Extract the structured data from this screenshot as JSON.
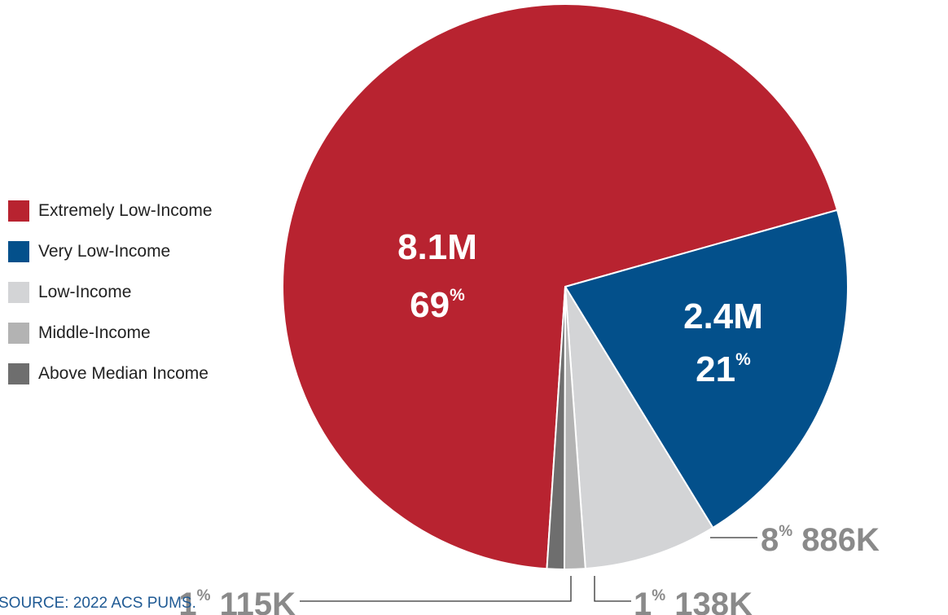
{
  "source": "SOURCE: 2022 ACS PUMS.",
  "colors": {
    "source_text": "#1f5a94",
    "slice_stroke": "#ffffff",
    "inside_label": "#ffffff",
    "outside_label": "#8a8a8a",
    "leader_line": "#333333"
  },
  "chart_data": {
    "type": "pie",
    "title": "",
    "legend_position": "left",
    "slices": [
      {
        "name": "Extremely Low-Income",
        "count": "8.1M",
        "percent": "69",
        "color": "#b82330",
        "label_placement": "inside"
      },
      {
        "name": "Very Low-Income",
        "count": "2.4M",
        "percent": "21",
        "color": "#03508b",
        "label_placement": "inside"
      },
      {
        "name": "Low-Income",
        "count": "886K",
        "percent": "8",
        "color": "#d3d4d6",
        "label_placement": "outside"
      },
      {
        "name": "Middle-Income",
        "count": "138K",
        "percent": "1",
        "color": "#b3b3b3",
        "label_placement": "outside"
      },
      {
        "name": "Above Median Income",
        "count": "115K",
        "percent": "1",
        "color": "#6e6e6e",
        "label_placement": "outside"
      }
    ],
    "values": [
      8100000,
      2400000,
      886000,
      138000,
      115000
    ]
  }
}
